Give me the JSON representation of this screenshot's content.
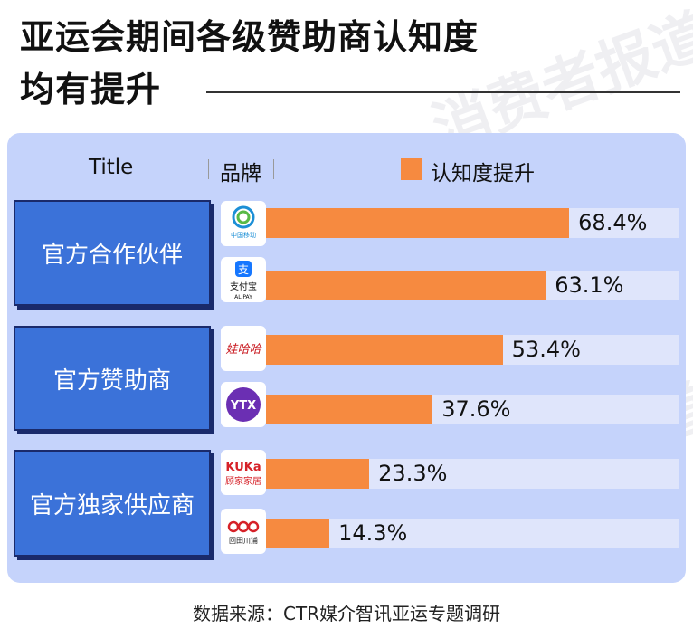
{
  "title_line1": "亚运会期间各级赞助商认知度",
  "title_line2": "均有提升",
  "header": {
    "col1": "Title",
    "col2": "品牌",
    "legend": "认知度提升"
  },
  "colors": {
    "bar": "#f68a40",
    "group": "#3b72d9",
    "panel": "#c5d3fb",
    "track": "#dfe5fb"
  },
  "groups": [
    {
      "label": "官方合作伙伴"
    },
    {
      "label": "官方赞助商"
    },
    {
      "label": "官方独家供应商"
    }
  ],
  "logos": [
    "中国移动 China Mobile",
    "支付宝 ALIPAY",
    "娃哈哈",
    "YTX",
    "KUKa 顾家家居",
    "回田川浦"
  ],
  "chart_data": {
    "type": "bar",
    "orientation": "horizontal",
    "categories": [
      "中国移动",
      "支付宝",
      "娃哈哈",
      "YTX",
      "顾家家居",
      "回田川浦"
    ],
    "values": [
      68.4,
      63.1,
      53.4,
      37.6,
      23.3,
      14.3
    ],
    "labels": [
      "68.4%",
      "63.1%",
      "53.4%",
      "37.6%",
      "23.3%",
      "14.3%"
    ],
    "series": [
      {
        "name": "认知度提升",
        "values": [
          68.4,
          63.1,
          53.4,
          37.6,
          23.3,
          14.3
        ]
      }
    ],
    "xlim": [
      0,
      100
    ],
    "legend": "top"
  },
  "watermark": "消费者报道",
  "footer": "数据来源：CTR媒介智讯亚运专题调研"
}
